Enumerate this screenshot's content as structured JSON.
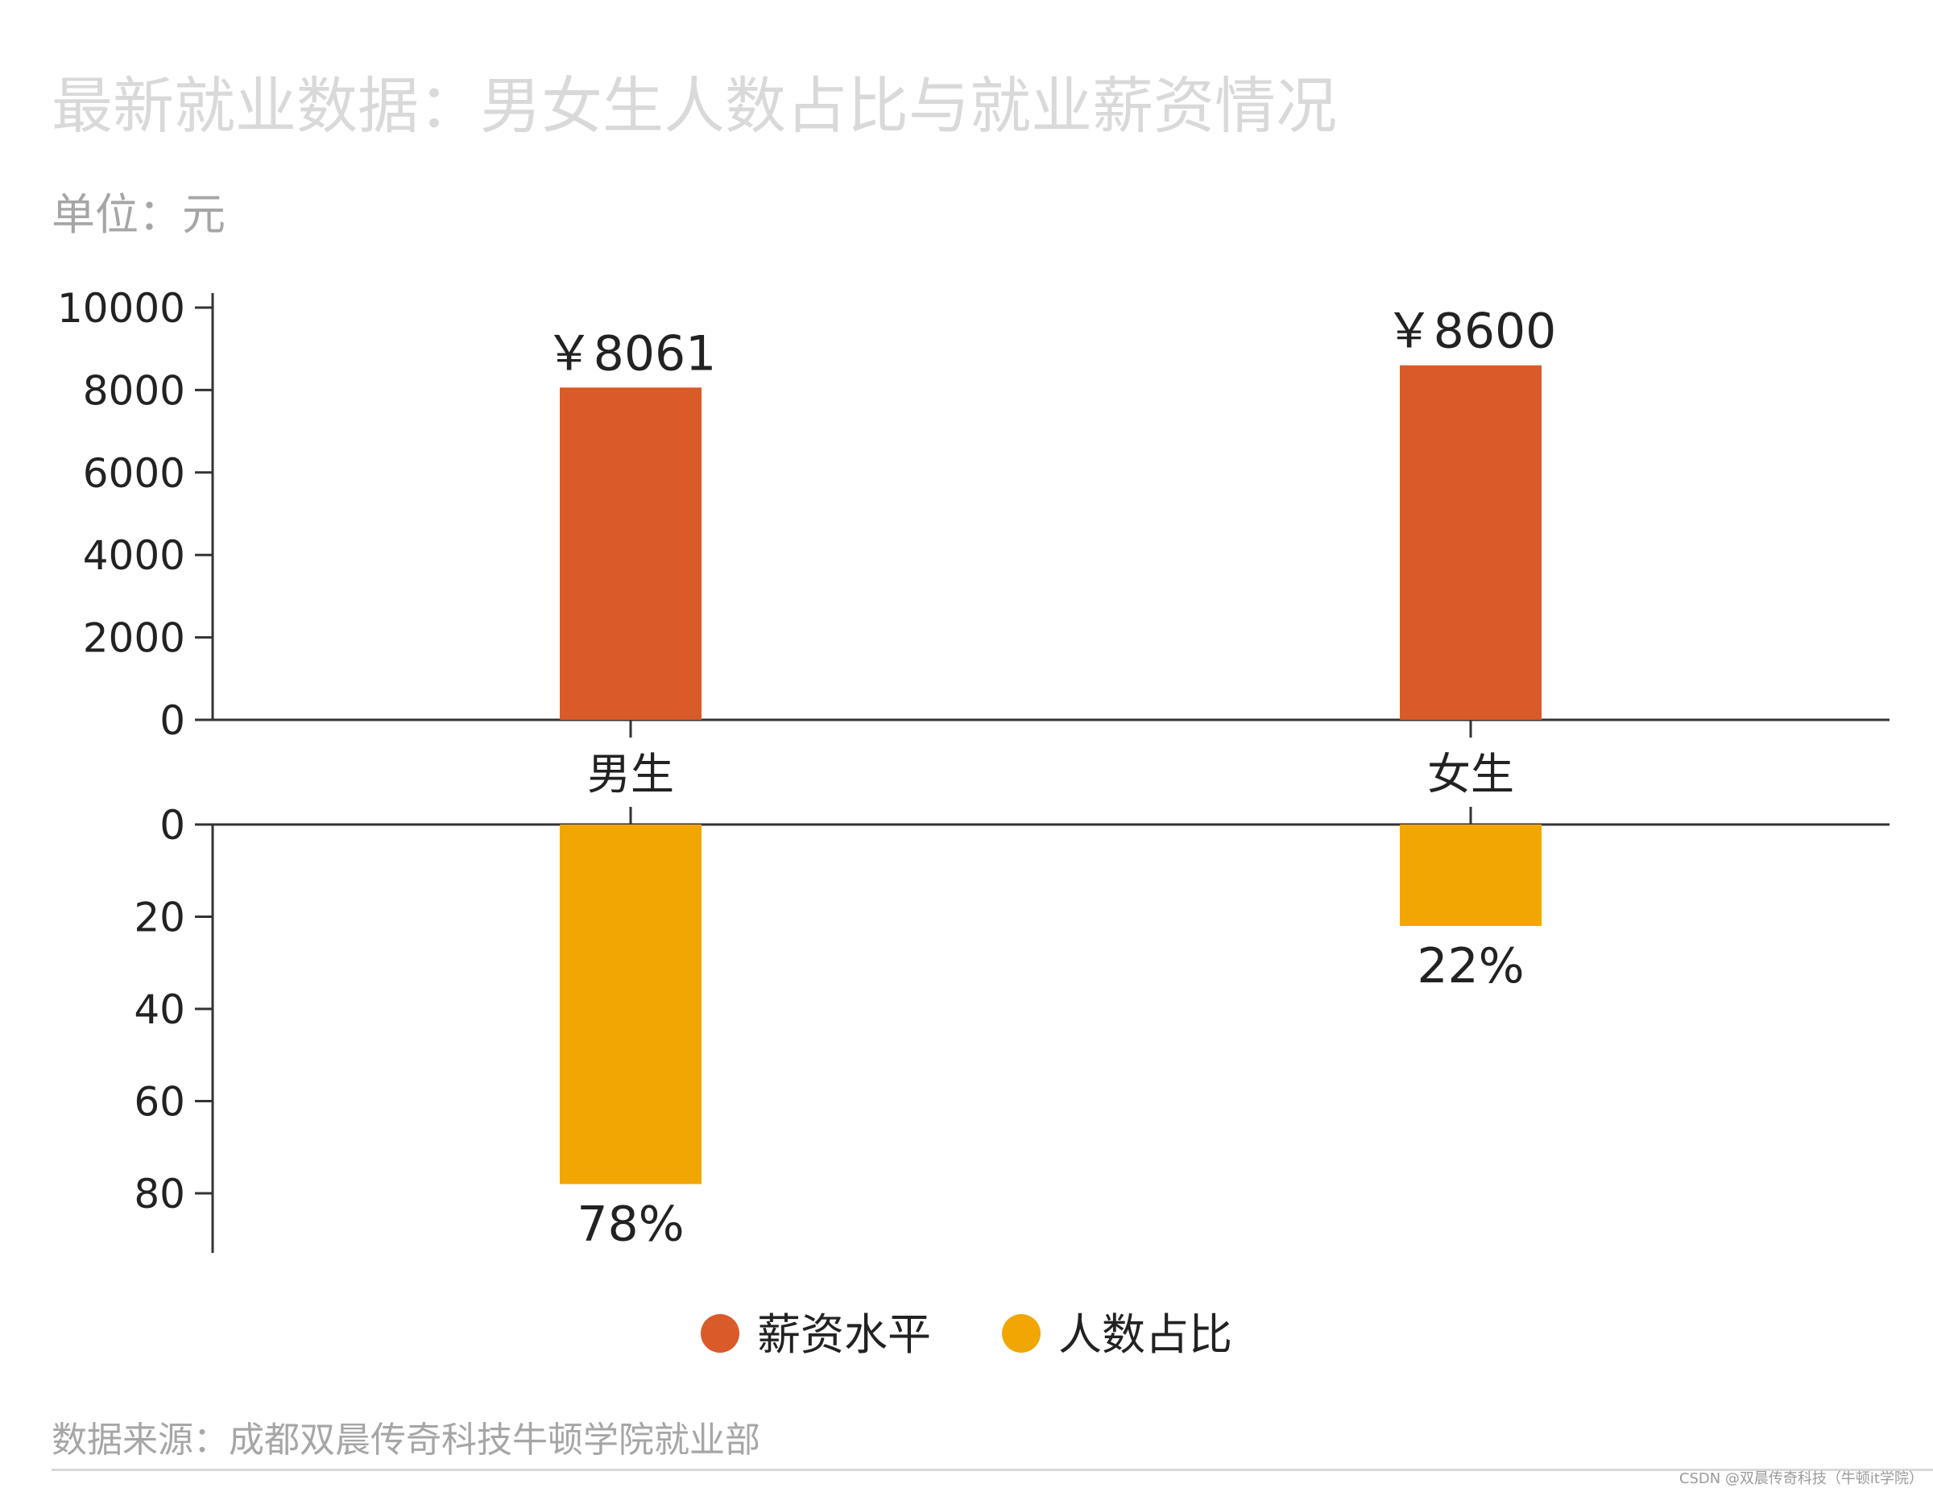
{
  "title": "最新就业数据：男女生人数占比与就业薪资情况",
  "unit": "单位：元",
  "source": "数据来源：成都双晨传奇科技牛顿学院就业部",
  "watermark": "CSDN @双晨传奇科技（牛顿it学院）",
  "colors": {
    "salary": "#d95b2a",
    "share": "#f2a602",
    "axis": "#333333"
  },
  "chart_data": {
    "type": "bar",
    "categories": [
      "男生",
      "女生"
    ],
    "series": [
      {
        "name": "薪资水平",
        "values": [
          8061,
          8600
        ],
        "labels": [
          "￥8061",
          "￥8600"
        ],
        "ylim": [
          0,
          10000
        ],
        "yticks": [
          0,
          2000,
          4000,
          6000,
          8000,
          10000
        ]
      },
      {
        "name": "人数占比",
        "values": [
          78,
          22
        ],
        "labels": [
          "78%",
          "22%"
        ],
        "ylim": [
          0,
          90
        ],
        "yticks": [
          0,
          20,
          40,
          60,
          80
        ],
        "inverted": true
      }
    ],
    "legend_position": "bottom-center",
    "grid": false
  }
}
